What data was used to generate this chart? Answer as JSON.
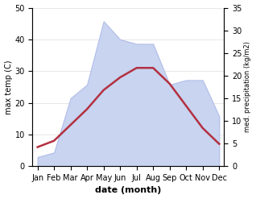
{
  "months": [
    "Jan",
    "Feb",
    "Mar",
    "Apr",
    "May",
    "Jun",
    "Jul",
    "Aug",
    "Sep",
    "Oct",
    "Nov",
    "Dec"
  ],
  "temperature": [
    6,
    8,
    13,
    18,
    24,
    28,
    31,
    31,
    26,
    19,
    12,
    7
  ],
  "precipitation": [
    2,
    3,
    15,
    18,
    32,
    28,
    27,
    27,
    18,
    19,
    19,
    11
  ],
  "temp_color": "#b33040",
  "precip_fill_color": "#c8d4f0",
  "precip_edge_color": "#b0bce8",
  "temp_ylim": [
    0,
    50
  ],
  "precip_ylim": [
    0,
    35
  ],
  "temp_yticks": [
    0,
    10,
    20,
    30,
    40,
    50
  ],
  "precip_yticks": [
    0,
    5,
    10,
    15,
    20,
    25,
    30,
    35
  ],
  "xlabel": "date (month)",
  "ylabel_left": "max temp (C)",
  "ylabel_right": "med. precipitation (kg/m2)",
  "axis_fontsize": 8,
  "tick_fontsize": 7,
  "line_width": 1.8,
  "background_color": "#ffffff"
}
